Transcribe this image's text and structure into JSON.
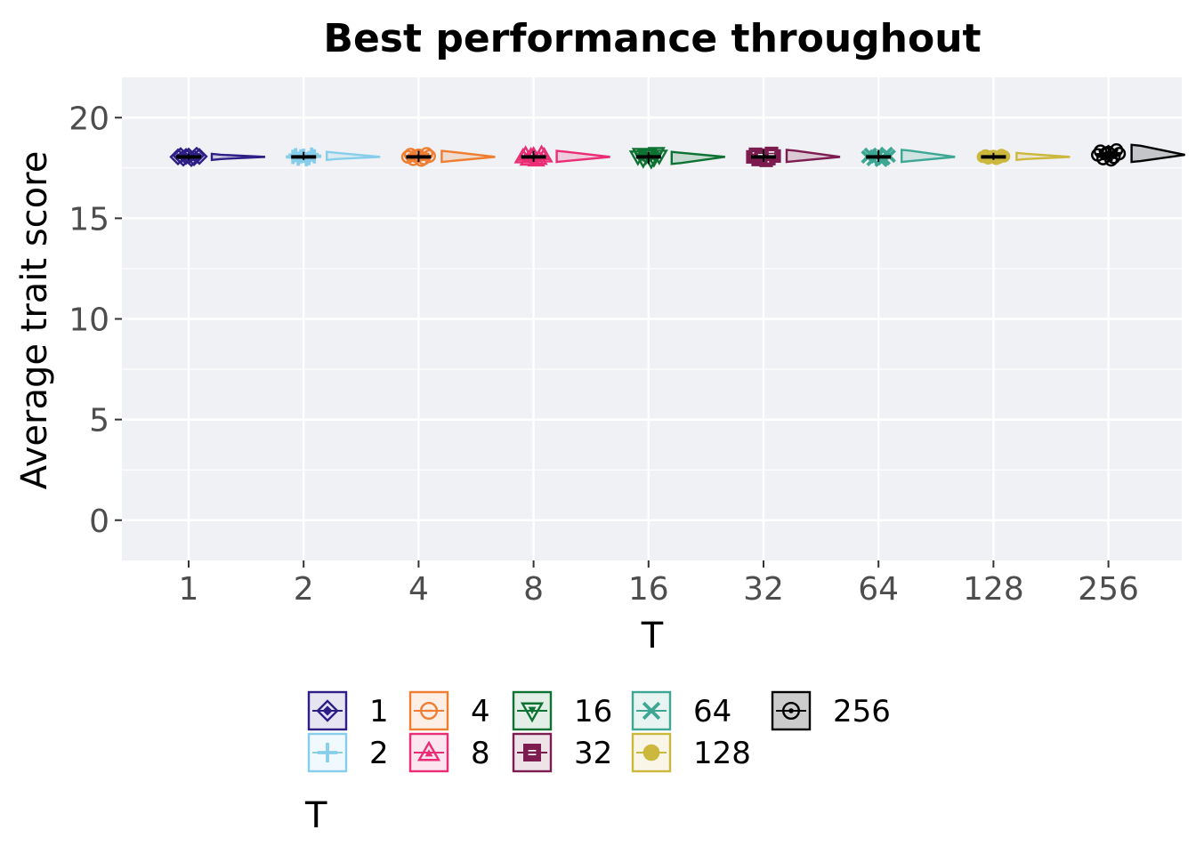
{
  "chart_data": {
    "type": "scatter",
    "title": "Best performance throughout",
    "xlabel": "T",
    "ylabel": "Average trait score",
    "categories": [
      "1",
      "2",
      "4",
      "8",
      "16",
      "32",
      "64",
      "128",
      "256"
    ],
    "ylim": [
      -2,
      22
    ],
    "yticks": [
      0,
      5,
      10,
      15,
      20
    ],
    "grid": true,
    "legend": {
      "title": "T",
      "position": "bottom",
      "entries": [
        "1",
        "2",
        "4",
        "8",
        "16",
        "32",
        "64",
        "128",
        "256"
      ]
    },
    "series": [
      {
        "name": "1",
        "median": 18.05,
        "min": 17.9,
        "max": 18.2,
        "color": "#2e1f87",
        "shape": "diamond"
      },
      {
        "name": "2",
        "median": 18.05,
        "min": 17.9,
        "max": 18.3,
        "color": "#87ceeb",
        "shape": "plus"
      },
      {
        "name": "4",
        "median": 18.05,
        "min": 17.8,
        "max": 18.35,
        "color": "#ef7e32",
        "shape": "circle-open"
      },
      {
        "name": "8",
        "median": 18.05,
        "min": 17.8,
        "max": 18.35,
        "color": "#ea2d74",
        "shape": "triangle-up"
      },
      {
        "name": "16",
        "median": 18.05,
        "min": 17.7,
        "max": 18.3,
        "color": "#0e7232",
        "shape": "triangle-down"
      },
      {
        "name": "32",
        "median": 18.05,
        "min": 17.8,
        "max": 18.4,
        "color": "#7d1c4f",
        "shape": "square"
      },
      {
        "name": "64",
        "median": 18.05,
        "min": 17.8,
        "max": 18.4,
        "color": "#3da794",
        "shape": "cross"
      },
      {
        "name": "128",
        "median": 18.05,
        "min": 17.9,
        "max": 18.25,
        "color": "#cdb83e",
        "shape": "circle"
      },
      {
        "name": "256",
        "median": 18.15,
        "min": 17.8,
        "max": 18.65,
        "color": "#000000",
        "shape": "circle-open-dot"
      }
    ]
  }
}
